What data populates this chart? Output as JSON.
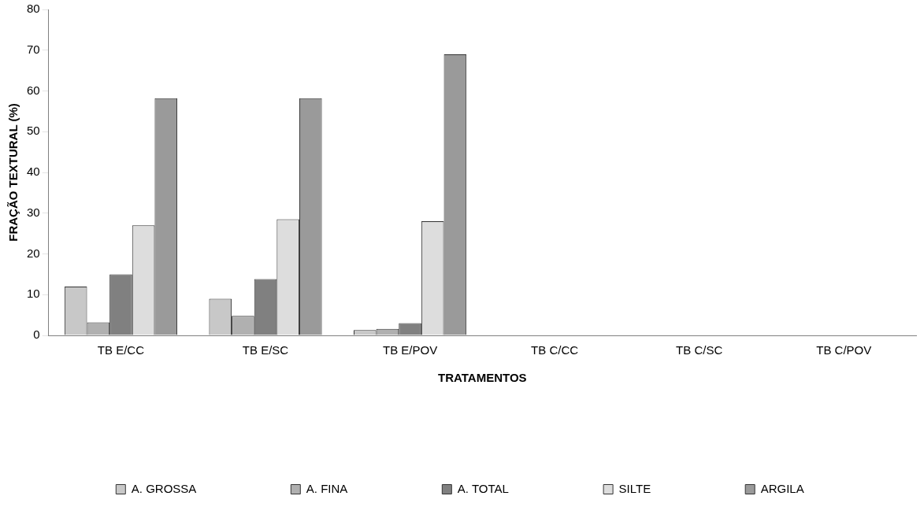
{
  "chart_data": {
    "type": "bar",
    "xlabel": "TRATAMENTOS",
    "ylabel": "FRAÇÃO TEXTURAL (%)",
    "categories": [
      "TB E/CC",
      "TB E/SC",
      "TB E/POV",
      "TB C/CC",
      "TB C/SC",
      "TB C/POV"
    ],
    "series": [
      {
        "name": "A. GROSSA",
        "color": "#c8c8c8",
        "values": [
          12,
          9,
          1.3,
          null,
          null,
          null
        ]
      },
      {
        "name": "A. FINA",
        "color": "#b0b0b0",
        "values": [
          3.2,
          4.8,
          1.6,
          null,
          null,
          null
        ]
      },
      {
        "name": "A. TOTAL",
        "color": "#808080",
        "values": [
          15,
          13.8,
          3,
          null,
          null,
          null
        ]
      },
      {
        "name": "SILTE",
        "color": "#dddddd",
        "values": [
          27,
          28.5,
          28,
          null,
          null,
          null
        ]
      },
      {
        "name": "ARGILA",
        "color": "#9a9a9a",
        "values": [
          58.2,
          58.2,
          69,
          null,
          null,
          null
        ]
      }
    ],
    "ylim": [
      0,
      80
    ],
    "yticks": [
      0,
      10,
      20,
      30,
      40,
      50,
      60,
      70,
      80
    ],
    "grid": false,
    "legend": "bottom"
  }
}
